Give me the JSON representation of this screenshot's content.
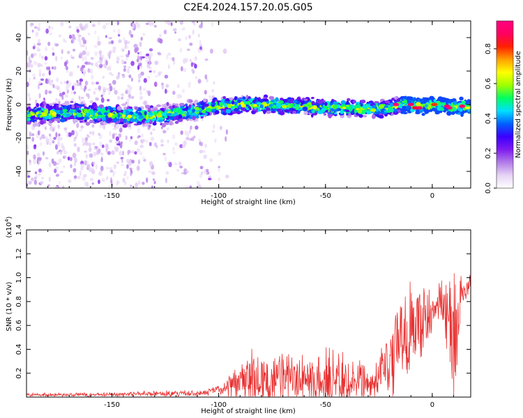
{
  "title": "C2E4.2024.157.20.05.G05",
  "colorbar": {
    "label": "Normalized spectral amplitude",
    "ticks": [
      "0.0",
      "0.2",
      "0.4",
      "0.6",
      "0.8"
    ],
    "tick_values": [
      0.0,
      0.2,
      0.4,
      0.6,
      0.8
    ],
    "range": [
      0,
      0.96
    ],
    "colormap": [
      "#ffffff",
      "#e6d3f5",
      "#b27be8",
      "#7f1bf0",
      "#3b00ff",
      "#0060ff",
      "#00e0ff",
      "#00ff60",
      "#a0ff00",
      "#ffff00",
      "#ffa000",
      "#ff2000",
      "#ff0060",
      "#ff0080"
    ]
  },
  "chart_data": [
    {
      "type": "heatmap",
      "xlabel": "Height of straight line (km)",
      "ylabel": "Frequency (Hz)",
      "xlim": [
        -190,
        18
      ],
      "ylim": [
        -50,
        50
      ],
      "xticks": [
        -150,
        -100,
        -50,
        0
      ],
      "yticks": [
        -40,
        -20,
        0,
        20,
        40
      ],
      "ridge": {
        "x": [
          -190,
          -170,
          -150,
          -140,
          -130,
          -120,
          -110,
          -105,
          -100,
          -90,
          -80,
          -70,
          -60,
          -50,
          -40,
          -30,
          -20,
          -15,
          -10,
          -5,
          0,
          5,
          10,
          15,
          18
        ],
        "y": [
          -6,
          -5,
          -6,
          -7,
          -7,
          -5,
          -4,
          -2,
          -1,
          0,
          0,
          -1,
          -1,
          -2,
          -2,
          -3,
          -2,
          0,
          0,
          -1,
          -1,
          0,
          -2,
          -1,
          -2
        ]
      },
      "peak_points": [
        {
          "x": -17,
          "y": 0,
          "value": 0.95
        },
        {
          "x": -10,
          "y": 0,
          "value": 0.9
        },
        {
          "x": -8,
          "y": -2,
          "value": 0.85
        },
        {
          "x": -6,
          "y": -2,
          "value": 0.9
        },
        {
          "x": 1,
          "y": 0,
          "value": 0.8
        },
        {
          "x": 7,
          "y": -1,
          "value": 0.9
        },
        {
          "x": 8,
          "y": -2,
          "value": 0.95
        },
        {
          "x": 14,
          "y": -1,
          "value": 0.9
        }
      ]
    },
    {
      "type": "line",
      "xlabel": "Height of straight line (km)",
      "ylabel": "SNR (10 * v/v)",
      "multiplier": "(x10^4)",
      "multiplier_base": "x10",
      "multiplier_exp": "4",
      "xlim": [
        -190,
        18
      ],
      "ylim": [
        0,
        1.4
      ],
      "xticks": [
        -150,
        -100,
        -50,
        0
      ],
      "yticks": [
        0.2,
        0.4,
        0.6,
        0.8,
        1.0,
        1.2,
        1.4
      ],
      "series": [
        {
          "color": "#e83030",
          "envelope": {
            "x": [
              -190,
              -150,
              -130,
              -110,
              -100,
              -92,
              -85,
              -75,
              -65,
              -55,
              -45,
              -35,
              -28,
              -24,
              -20,
              -15,
              -12,
              -8,
              -5,
              0,
              3,
              6,
              8,
              10,
              12,
              15,
              18
            ],
            "base": [
              0.02,
              0.02,
              0.03,
              0.03,
              0.06,
              0.1,
              0.15,
              0.15,
              0.15,
              0.14,
              0.14,
              0.13,
              0.1,
              0.2,
              0.35,
              0.45,
              0.55,
              0.6,
              0.6,
              0.7,
              0.8,
              0.75,
              0.6,
              0.5,
              0.7,
              0.85,
              1.0
            ],
            "amp": [
              0.02,
              0.02,
              0.03,
              0.03,
              0.05,
              0.15,
              0.28,
              0.25,
              0.25,
              0.3,
              0.3,
              0.25,
              0.15,
              0.25,
              0.4,
              0.45,
              0.5,
              0.4,
              0.4,
              0.2,
              0.2,
              0.35,
              0.6,
              0.7,
              0.4,
              0.2,
              0.1
            ]
          }
        }
      ]
    }
  ]
}
